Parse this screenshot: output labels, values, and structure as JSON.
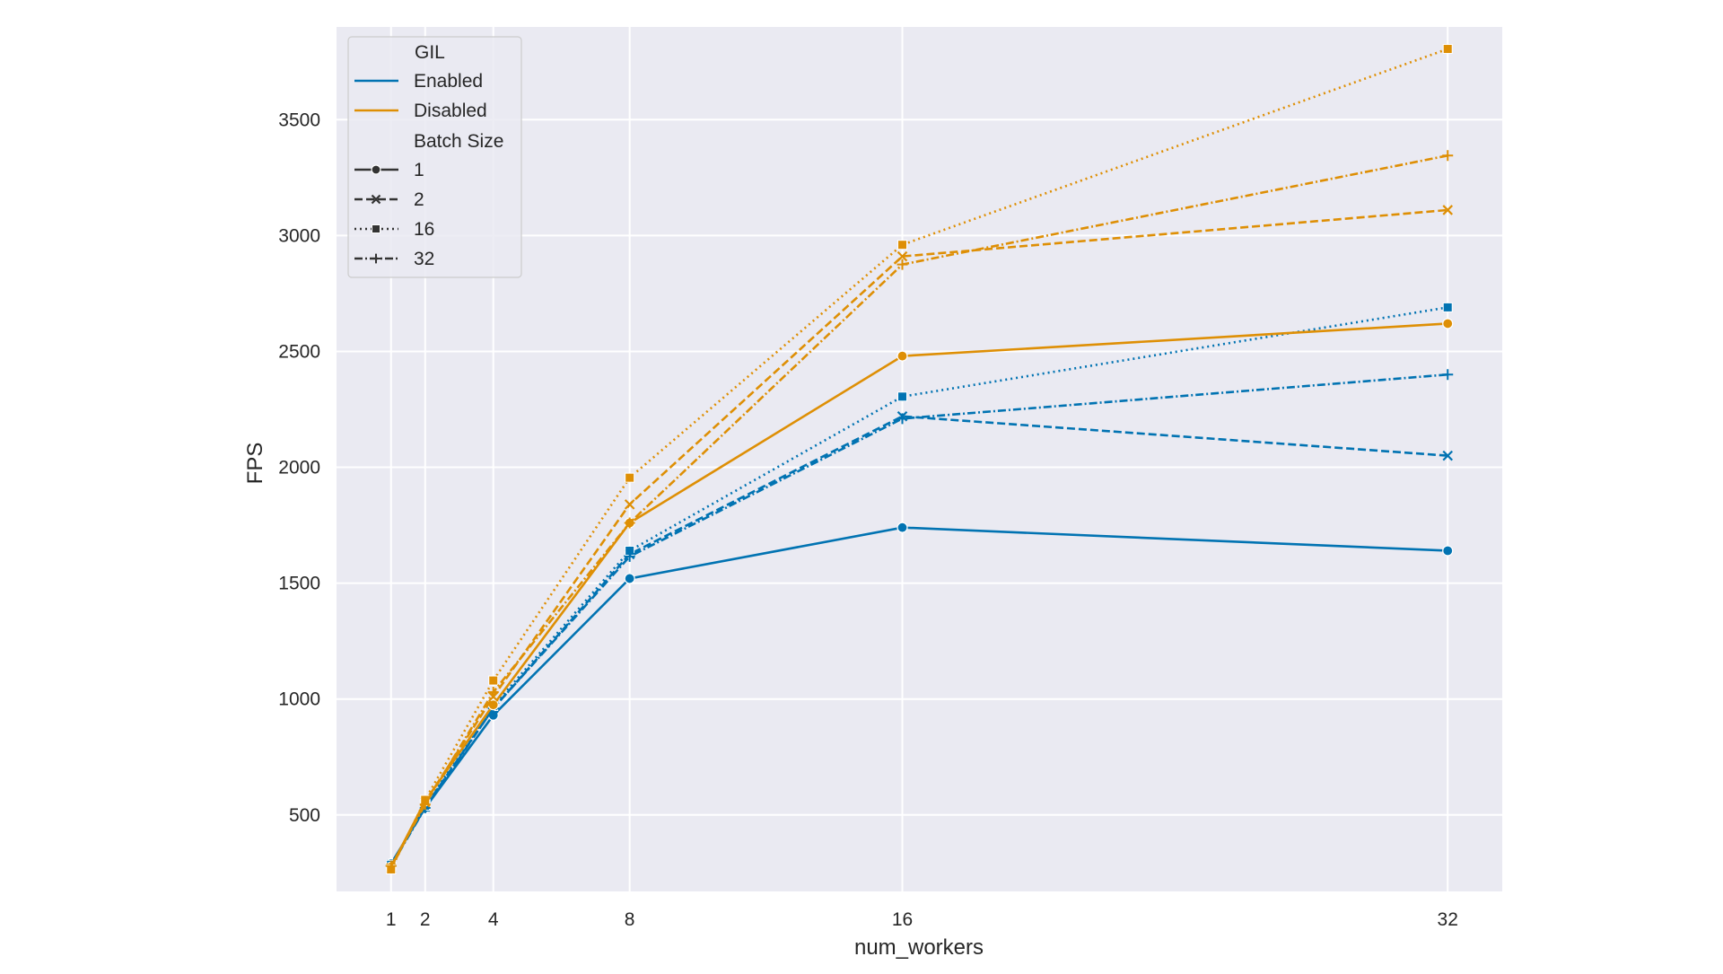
{
  "chart_data": {
    "type": "line",
    "xlabel": "num_workers",
    "ylabel": "FPS",
    "x": [
      1,
      2,
      4,
      8,
      16,
      32
    ],
    "x_ticks": [
      "1",
      "2",
      "4",
      "8",
      "16",
      "32"
    ],
    "y_ticks": [
      "500",
      "1000",
      "1500",
      "2000",
      "2500",
      "3000",
      "3500"
    ],
    "y_tick_values": [
      500,
      1000,
      1500,
      2000,
      2500,
      3000,
      3500
    ],
    "xlim": [
      -0.6,
      33.6
    ],
    "ylim": [
      170,
      3900
    ],
    "grid": true,
    "background": "#eaeaf2",
    "legend": {
      "placement": "top-left",
      "hue_title": "GIL",
      "hue_entries": [
        {
          "label": "Enabled",
          "color": "#0173b2"
        },
        {
          "label": "Disabled",
          "color": "#de8f05"
        }
      ],
      "style_title": "Batch Size",
      "style_entries": [
        {
          "label": "1",
          "marker": "circle",
          "dash": "solid"
        },
        {
          "label": "2",
          "marker": "x",
          "dash": "dashed"
        },
        {
          "label": "16",
          "marker": "square",
          "dash": "dotted"
        },
        {
          "label": "32",
          "marker": "plus",
          "dash": "dashdot"
        }
      ]
    },
    "series": [
      {
        "gil": "Enabled",
        "batch_size": "1",
        "color": "#0173b2",
        "values": [
          290,
          530,
          930,
          1520,
          1740,
          1640
        ]
      },
      {
        "gil": "Enabled",
        "batch_size": "2",
        "color": "#0173b2",
        "values": [
          285,
          535,
          960,
          1625,
          2220,
          2050
        ]
      },
      {
        "gil": "Enabled",
        "batch_size": "16",
        "color": "#0173b2",
        "values": [
          285,
          540,
          970,
          1640,
          2305,
          2690
        ]
      },
      {
        "gil": "Enabled",
        "batch_size": "32",
        "color": "#0173b2",
        "values": [
          280,
          530,
          960,
          1615,
          2210,
          2400
        ]
      },
      {
        "gil": "Disabled",
        "batch_size": "1",
        "color": "#de8f05",
        "values": [
          275,
          560,
          975,
          1760,
          2480,
          2620
        ]
      },
      {
        "gil": "Disabled",
        "batch_size": "2",
        "color": "#de8f05",
        "values": [
          270,
          555,
          1010,
          1840,
          2910,
          3110
        ]
      },
      {
        "gil": "Disabled",
        "batch_size": "16",
        "color": "#de8f05",
        "values": [
          265,
          565,
          1080,
          1955,
          2960,
          3805
        ]
      },
      {
        "gil": "Disabled",
        "batch_size": "32",
        "color": "#de8f05",
        "values": [
          280,
          545,
          1030,
          1760,
          2875,
          3345
        ]
      }
    ]
  }
}
